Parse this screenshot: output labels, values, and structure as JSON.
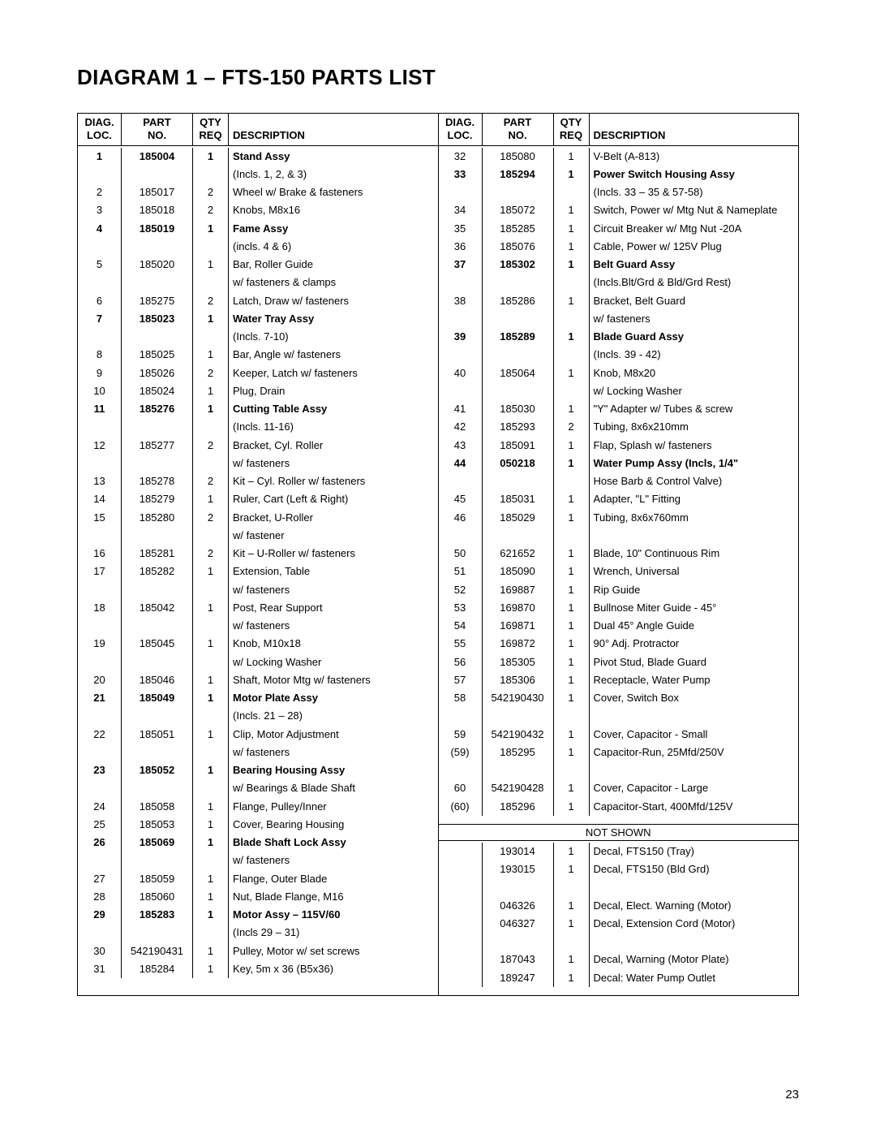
{
  "title": "DIAGRAM 1 – FTS-150 PARTS LIST",
  "page_number": "23",
  "headers": {
    "loc1": "DIAG.",
    "loc2": "LOC.",
    "part1": "PART",
    "part2": "NO.",
    "qty1": "QTY",
    "qty2": "REQ",
    "desc": "DESCRIPTION"
  },
  "not_shown_label": "NOT SHOWN",
  "left_rows": [
    {
      "loc": "1",
      "part": "185004",
      "qty": "1",
      "desc": "Stand Assy",
      "bold": true
    },
    {
      "loc": "",
      "part": "",
      "qty": "",
      "desc": "(Incls. 1, 2, & 3)",
      "sub": true
    },
    {
      "loc": "2",
      "part": "185017",
      "qty": "2",
      "desc": "Wheel w/ Brake & fasteners"
    },
    {
      "loc": "3",
      "part": "185018",
      "qty": "2",
      "desc": "Knobs, M8x16"
    },
    {
      "loc": "4",
      "part": "185019",
      "qty": "1",
      "desc": "Fame Assy",
      "bold": true
    },
    {
      "loc": "",
      "part": "",
      "qty": "",
      "desc": "(incls. 4 & 6)",
      "sub": true
    },
    {
      "loc": "5",
      "part": "185020",
      "qty": "1",
      "desc": "Bar, Roller Guide"
    },
    {
      "loc": "",
      "part": "",
      "qty": "",
      "desc": "w/ fasteners & clamps",
      "sub": true
    },
    {
      "loc": "6",
      "part": "185275",
      "qty": "2",
      "desc": "Latch, Draw w/ fasteners"
    },
    {
      "loc": "7",
      "part": "185023",
      "qty": "1",
      "desc": "Water Tray Assy",
      "bold": true
    },
    {
      "loc": "",
      "part": "",
      "qty": "",
      "desc": "(Incls. 7-10)",
      "sub": true
    },
    {
      "loc": "8",
      "part": "185025",
      "qty": "1",
      "desc": "Bar, Angle w/ fasteners"
    },
    {
      "loc": "9",
      "part": "185026",
      "qty": "2",
      "desc": "Keeper, Latch w/ fasteners"
    },
    {
      "loc": "10",
      "part": "185024",
      "qty": "1",
      "desc": "Plug, Drain"
    },
    {
      "loc": "11",
      "part": "185276",
      "qty": "1",
      "desc": "Cutting Table Assy",
      "bold": true
    },
    {
      "loc": "",
      "part": "",
      "qty": "",
      "desc": "(Incls. 11-16)",
      "sub": true
    },
    {
      "loc": "12",
      "part": "185277",
      "qty": "2",
      "desc": "Bracket, Cyl. Roller"
    },
    {
      "loc": "",
      "part": "",
      "qty": "",
      "desc": "w/ fasteners",
      "sub": true
    },
    {
      "loc": "13",
      "part": "185278",
      "qty": "2",
      "desc": "Kit – Cyl. Roller w/ fasteners"
    },
    {
      "loc": "14",
      "part": "185279",
      "qty": "1",
      "desc": "Ruler, Cart (Left & Right)"
    },
    {
      "loc": "15",
      "part": "185280",
      "qty": "2",
      "desc": "Bracket, U-Roller"
    },
    {
      "loc": "",
      "part": "",
      "qty": "",
      "desc": "w/ fastener",
      "sub": true
    },
    {
      "loc": "16",
      "part": "185281",
      "qty": "2",
      "desc": "Kit – U-Roller w/ fasteners"
    },
    {
      "loc": "17",
      "part": "185282",
      "qty": "1",
      "desc": "Extension, Table"
    },
    {
      "loc": "",
      "part": "",
      "qty": "",
      "desc": "w/ fasteners",
      "sub": true
    },
    {
      "loc": "18",
      "part": "185042",
      "qty": "1",
      "desc": "Post, Rear Support"
    },
    {
      "loc": "",
      "part": "",
      "qty": "",
      "desc": "w/ fasteners",
      "sub": true
    },
    {
      "loc": "19",
      "part": "185045",
      "qty": "1",
      "desc": "Knob, M10x18"
    },
    {
      "loc": "",
      "part": "",
      "qty": "",
      "desc": "w/ Locking Washer",
      "sub": true
    },
    {
      "loc": "20",
      "part": "185046",
      "qty": "1",
      "desc": "Shaft, Motor Mtg w/ fasteners"
    },
    {
      "loc": "21",
      "part": "185049",
      "qty": "1",
      "desc": "Motor Plate Assy",
      "bold": true
    },
    {
      "loc": "",
      "part": "",
      "qty": "",
      "desc": "(Incls. 21 – 28)",
      "sub": true
    },
    {
      "loc": "22",
      "part": "185051",
      "qty": "1",
      "desc": "Clip, Motor Adjustment"
    },
    {
      "loc": "",
      "part": "",
      "qty": "",
      "desc": "w/ fasteners",
      "sub": true
    },
    {
      "loc": "23",
      "part": "185052",
      "qty": "1",
      "desc": "Bearing Housing Assy",
      "bold": true
    },
    {
      "loc": "",
      "part": "",
      "qty": "",
      "desc": "w/ Bearings & Blade Shaft",
      "sub": true
    },
    {
      "loc": "24",
      "part": "185058",
      "qty": "1",
      "desc": "Flange, Pulley/Inner"
    },
    {
      "loc": "25",
      "part": "185053",
      "qty": "1",
      "desc": "Cover, Bearing Housing"
    },
    {
      "loc": "26",
      "part": "185069",
      "qty": "1",
      "desc": "Blade Shaft Lock Assy",
      "bold": true
    },
    {
      "loc": "",
      "part": "",
      "qty": "",
      "desc": "w/ fasteners",
      "sub": true
    },
    {
      "loc": "27",
      "part": "185059",
      "qty": "1",
      "desc": "Flange, Outer Blade"
    },
    {
      "loc": "28",
      "part": "185060",
      "qty": "1",
      "desc": "Nut, Blade Flange, M16"
    },
    {
      "loc": "29",
      "part": "185283",
      "qty": "1",
      "desc": "Motor Assy – 115V/60",
      "bold": true
    },
    {
      "loc": "",
      "part": "",
      "qty": "",
      "desc": "(Incls 29 – 31)",
      "sub": true
    },
    {
      "loc": "30",
      "part": "542190431",
      "qty": "1",
      "desc": "Pulley, Motor w/ set screws"
    },
    {
      "loc": "31",
      "part": "185284",
      "qty": "1",
      "desc": "Key, 5m x 36 (B5x36)"
    }
  ],
  "right_rows": [
    {
      "loc": "32",
      "part": "185080",
      "qty": "1",
      "desc": "V-Belt (A-813)"
    },
    {
      "loc": "33",
      "part": "185294",
      "qty": "1",
      "desc": "Power Switch Housing Assy",
      "bold": true
    },
    {
      "loc": "",
      "part": "",
      "qty": "",
      "desc": "(Incls. 33 – 35 & 57-58)"
    },
    {
      "loc": "34",
      "part": "185072",
      "qty": "1",
      "desc": "Switch, Power w/ Mtg Nut & Nameplate"
    },
    {
      "loc": "35",
      "part": "185285",
      "qty": "1",
      "desc": "Circuit Breaker w/ Mtg Nut -20A"
    },
    {
      "loc": "36",
      "part": "185076",
      "qty": "1",
      "desc": "Cable, Power w/ 125V Plug"
    },
    {
      "loc": "37",
      "part": "185302",
      "qty": "1",
      "desc": "Belt Guard Assy",
      "bold": true
    },
    {
      "loc": "",
      "part": "",
      "qty": "",
      "desc": "(Incls.Blt/Grd & Bld/Grd Rest)"
    },
    {
      "loc": "38",
      "part": "185286",
      "qty": "1",
      "desc": "Bracket, Belt Guard"
    },
    {
      "loc": "",
      "part": "",
      "qty": "",
      "desc": "w/ fasteners",
      "sub": true
    },
    {
      "loc": "39",
      "part": "185289",
      "qty": "1",
      "desc": "Blade Guard Assy",
      "bold": true
    },
    {
      "loc": "",
      "part": "",
      "qty": "",
      "desc": "(Incls. 39 - 42)"
    },
    {
      "loc": "40",
      "part": "185064",
      "qty": "1",
      "desc": "Knob, M8x20"
    },
    {
      "loc": "",
      "part": "",
      "qty": "",
      "desc": "w/ Locking Washer",
      "sub": true
    },
    {
      "loc": "41",
      "part": "185030",
      "qty": "1",
      "desc": "\"Y\" Adapter w/ Tubes & screw"
    },
    {
      "loc": "42",
      "part": "185293",
      "qty": "2",
      "desc": "Tubing, 8x6x210mm"
    },
    {
      "loc": "43",
      "part": "185091",
      "qty": "1",
      "desc": "Flap, Splash w/ fasteners"
    },
    {
      "loc": "44",
      "part": "050218",
      "qty": "1",
      "desc": "Water Pump Assy (Incls, 1/4\"",
      "bold": true
    },
    {
      "loc": "",
      "part": "",
      "qty": "",
      "desc": "Hose Barb & Control Valve)",
      "sub": true
    },
    {
      "loc": "45",
      "part": "185031",
      "qty": "1",
      "desc": "Adapter, \"L\" Fitting"
    },
    {
      "loc": "46",
      "part": "185029",
      "qty": "1",
      "desc": "Tubing, 8x6x760mm"
    },
    {
      "loc": "",
      "part": "",
      "qty": "",
      "desc": " "
    },
    {
      "loc": "50",
      "part": "621652",
      "qty": "1",
      "desc": "Blade, 10\" Continuous Rim"
    },
    {
      "loc": "51",
      "part": "185090",
      "qty": "1",
      "desc": "Wrench, Universal"
    },
    {
      "loc": "52",
      "part": "169887",
      "qty": "1",
      "desc": "Rip Guide"
    },
    {
      "loc": "53",
      "part": "169870",
      "qty": "1",
      "desc": "Bullnose Miter Guide - 45°"
    },
    {
      "loc": "54",
      "part": "169871",
      "qty": "1",
      "desc": "Dual 45° Angle Guide"
    },
    {
      "loc": "55",
      "part": "169872",
      "qty": "1",
      "desc": "90° Adj. Protractor"
    },
    {
      "loc": "56",
      "part": "185305",
      "qty": "1",
      "desc": "Pivot Stud, Blade Guard"
    },
    {
      "loc": "57",
      "part": "185306",
      "qty": "1",
      "desc": "Receptacle, Water Pump"
    },
    {
      "loc": "58",
      "part": "542190430",
      "qty": "1",
      "desc": "Cover, Switch Box"
    },
    {
      "loc": "",
      "part": "",
      "qty": "",
      "desc": " "
    },
    {
      "loc": "59",
      "part": "542190432",
      "qty": "1",
      "desc": "Cover, Capacitor - Small"
    },
    {
      "loc": "(59)",
      "part": "185295",
      "qty": "1",
      "desc": "Capacitor-Run, 25Mfd/250V"
    },
    {
      "loc": "",
      "part": "",
      "qty": "",
      "desc": " "
    },
    {
      "loc": "60",
      "part": "542190428",
      "qty": "1",
      "desc": "Cover, Capacitor - Large"
    },
    {
      "loc": "(60)",
      "part": "185296",
      "qty": "1",
      "desc": "Capacitor-Start, 400Mfd/125V"
    }
  ],
  "right_rows_ns": [
    {
      "loc": "",
      "part": "193014",
      "qty": "1",
      "desc": "Decal, FTS150 (Tray)"
    },
    {
      "loc": "",
      "part": "193015",
      "qty": "1",
      "desc": "Decal, FTS150  (Bld Grd)"
    },
    {
      "loc": "",
      "part": "",
      "qty": "",
      "desc": " "
    },
    {
      "loc": "",
      "part": "046326",
      "qty": "1",
      "desc": "Decal, Elect. Warning (Motor)"
    },
    {
      "loc": "",
      "part": "046327",
      "qty": "1",
      "desc": "Decal, Extension Cord (Motor)"
    },
    {
      "loc": "",
      "part": "",
      "qty": "",
      "desc": " "
    },
    {
      "loc": "",
      "part": "187043",
      "qty": "1",
      "desc": "Decal, Warning (Motor Plate)"
    },
    {
      "loc": "",
      "part": "189247",
      "qty": "1",
      "desc": "Decal: Water Pump Outlet"
    }
  ]
}
